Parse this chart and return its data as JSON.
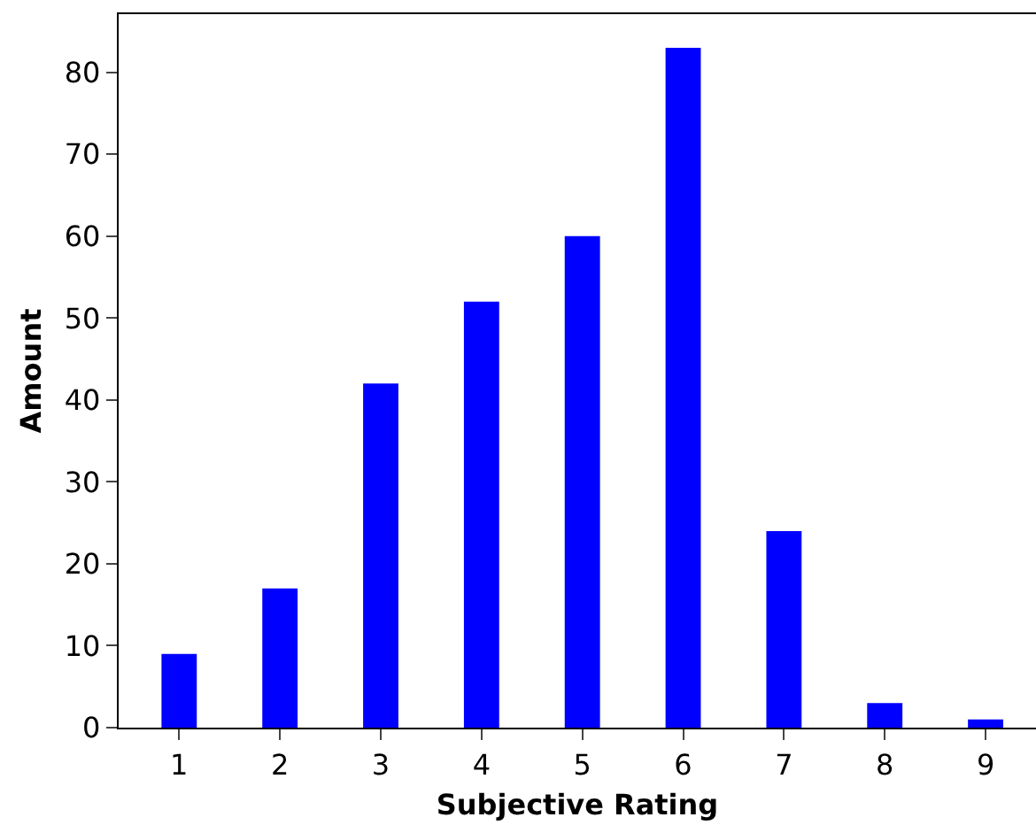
{
  "chart_data": {
    "type": "bar",
    "xlabel": "Subjective Rating",
    "ylabel": "Amount",
    "x": [
      1,
      2,
      3,
      4,
      5,
      6,
      7,
      8,
      9
    ],
    "values": [
      9,
      17,
      42,
      52,
      60,
      83,
      24,
      3,
      1
    ],
    "color": "#0000ff",
    "xlim": [
      0.4,
      9.5
    ],
    "xticks": [
      1,
      2,
      3,
      4,
      5,
      6,
      7,
      8,
      9
    ],
    "ylim": [
      0,
      87.1
    ],
    "yticks": [
      0,
      10,
      20,
      30,
      40,
      50,
      60,
      70,
      80
    ],
    "grid": false,
    "legend": false
  }
}
